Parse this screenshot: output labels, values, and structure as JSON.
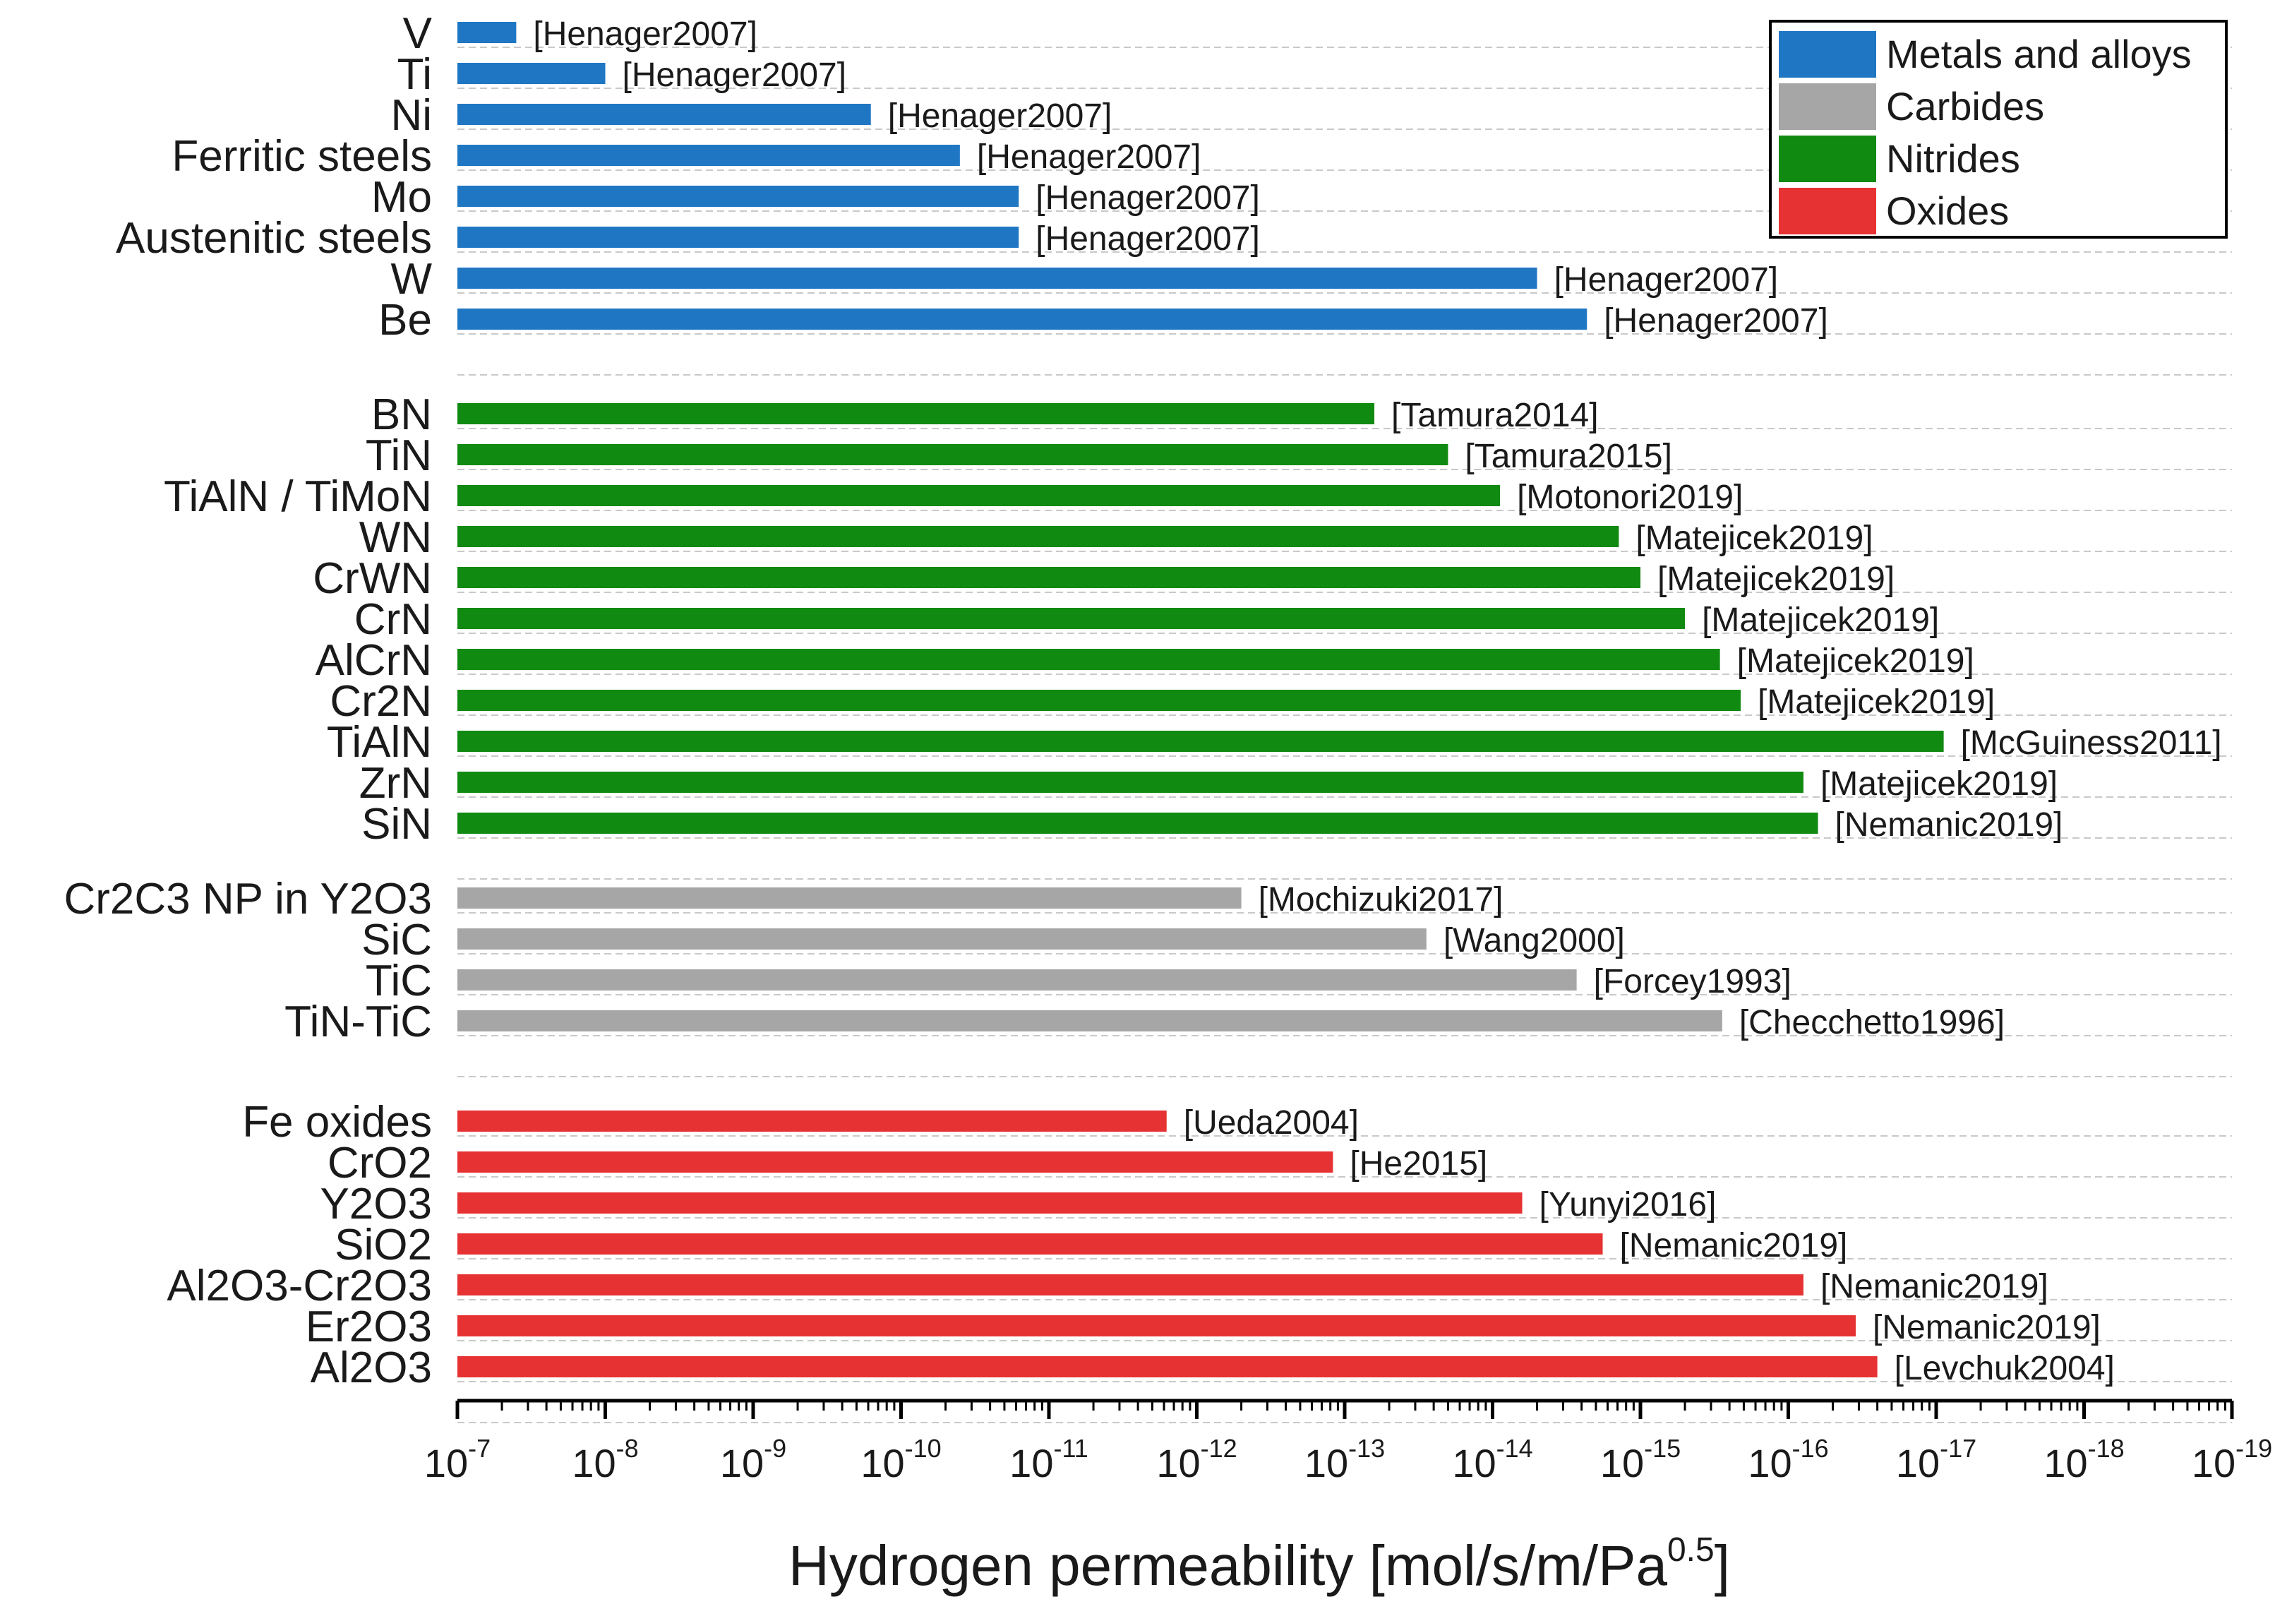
{
  "chart_data": {
    "type": "bar",
    "orientation": "horizontal",
    "x_scale": "log",
    "x_reversed": true,
    "xlim_exponents": [
      -7,
      -19
    ],
    "xticks": [
      {
        "base": "10",
        "exp": "-7"
      },
      {
        "base": "10",
        "exp": "-8"
      },
      {
        "base": "10",
        "exp": "-9"
      },
      {
        "base": "10",
        "exp": "-10"
      },
      {
        "base": "10",
        "exp": "-11"
      },
      {
        "base": "10",
        "exp": "-12"
      },
      {
        "base": "10",
        "exp": "-13"
      },
      {
        "base": "10",
        "exp": "-14"
      },
      {
        "base": "10",
        "exp": "-15"
      },
      {
        "base": "10",
        "exp": "-16"
      },
      {
        "base": "10",
        "exp": "-17"
      },
      {
        "base": "10",
        "exp": "-18"
      },
      {
        "base": "10",
        "exp": "-19"
      }
    ],
    "xlabel": "Hydrogen permeability [mol/s/m/Pa",
    "xlabel_sup": "0.5",
    "xlabel_end": "]",
    "grid": "horizontal dashed",
    "legend": {
      "position": "top-right",
      "entries": [
        {
          "name": "Metals and alloys",
          "color": "#1f77c4"
        },
        {
          "name": "Carbides",
          "color": "#a6a6a6"
        },
        {
          "name": "Nitrides",
          "color": "#108a10"
        },
        {
          "name": "Oxides",
          "color": "#e63232"
        }
      ]
    },
    "groups": [
      {
        "name": "Metals and alloys",
        "color": "#1f77c4",
        "bars": [
          {
            "label": "V",
            "value": 4e-08,
            "ref": "[Henager2007]"
          },
          {
            "label": "Ti",
            "value": 1e-08,
            "ref": "[Henager2007]"
          },
          {
            "label": "Ni",
            "value": 1.6e-10,
            "ref": "[Henager2007]"
          },
          {
            "label": "Ferritic steels",
            "value": 4e-11,
            "ref": "[Henager2007]"
          },
          {
            "label": "Mo",
            "value": 1.6e-11,
            "ref": "[Henager2007]"
          },
          {
            "label": "Austenitic steels",
            "value": 1.6e-11,
            "ref": "[Henager2007]"
          },
          {
            "label": "W",
            "value": 5e-15,
            "ref": "[Henager2007]"
          },
          {
            "label": "Be",
            "value": 2.3e-15,
            "ref": "[Henager2007]"
          }
        ]
      },
      {
        "name": "Nitrides",
        "color": "#108a10",
        "bars": [
          {
            "label": "BN",
            "value": 6.3e-14,
            "ref": "[Tamura2014]"
          },
          {
            "label": "TiN",
            "value": 2e-14,
            "ref": "[Tamura2015]"
          },
          {
            "label": "TiAlN / TiMoN",
            "value": 8.9e-15,
            "ref": "[Motonori2019]"
          },
          {
            "label": "WN",
            "value": 1.4e-15,
            "ref": "[Matejicek2019]"
          },
          {
            "label": "CrWN",
            "value": 1e-15,
            "ref": "[Matejicek2019]"
          },
          {
            "label": "CrN",
            "value": 5e-16,
            "ref": "[Matejicek2019]"
          },
          {
            "label": "AlCrN",
            "value": 2.9e-16,
            "ref": "[Matejicek2019]"
          },
          {
            "label": "Cr2N",
            "value": 2.1e-16,
            "ref": "[Matejicek2019]"
          },
          {
            "label": "TiAlN",
            "value": 8.9e-18,
            "ref": "[McGuiness2011]"
          },
          {
            "label": "ZrN",
            "value": 7.9e-17,
            "ref": "[Matejicek2019]"
          },
          {
            "label": "SiN",
            "value": 6.3e-17,
            "ref": "[Nemanic2019]"
          }
        ]
      },
      {
        "name": "Carbides",
        "color": "#a6a6a6",
        "bars": [
          {
            "label": "Cr2C3 NP in Y2O3",
            "value": 5e-13,
            "ref": "[Mochizuki2017]"
          },
          {
            "label": "SiC",
            "value": 2.8e-14,
            "ref": "[Wang2000]"
          },
          {
            "label": "TiC",
            "value": 2.7e-15,
            "ref": "[Forcey1993]"
          },
          {
            "label": "TiN-TiC",
            "value": 2.8e-16,
            "ref": "[Checchetto1996]"
          }
        ]
      },
      {
        "name": "Oxides",
        "color": "#e63232",
        "bars": [
          {
            "label": "Fe oxides",
            "value": 1.6e-12,
            "ref": "[Ueda2004]"
          },
          {
            "label": "CrO2",
            "value": 1.2e-13,
            "ref": "[He2015]"
          },
          {
            "label": "Y2O3",
            "value": 6.3e-15,
            "ref": "[Yunyi2016]"
          },
          {
            "label": "SiO2",
            "value": 1.8e-15,
            "ref": "[Nemanic2019]"
          },
          {
            "label": "Al2O3-Cr2O3",
            "value": 7.9e-17,
            "ref": "[Nemanic2019]"
          },
          {
            "label": "Er2O3",
            "value": 3.5e-17,
            "ref": "[Nemanic2019]"
          },
          {
            "label": "Al2O3",
            "value": 2.5e-17,
            "ref": "[Levchuk2004]"
          }
        ]
      }
    ]
  }
}
